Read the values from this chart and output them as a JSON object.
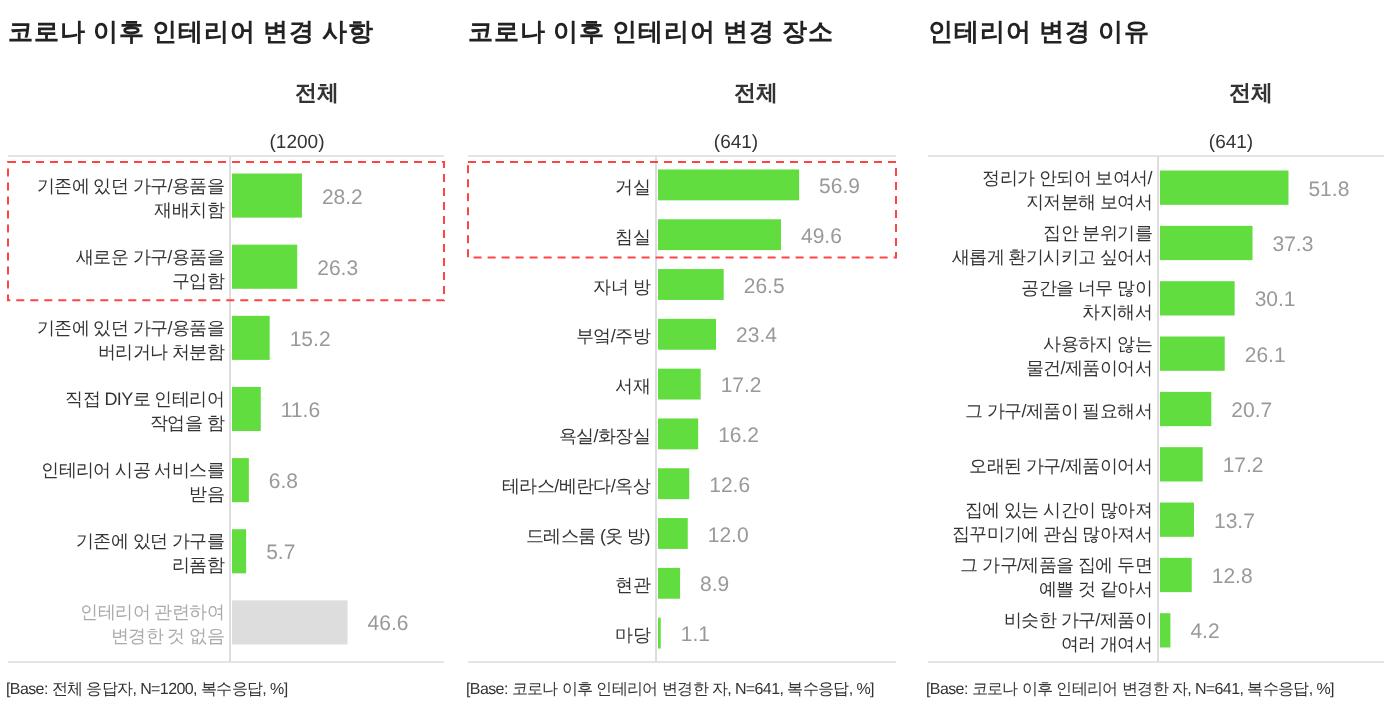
{
  "chart_data": [
    {
      "type": "bar",
      "orientation": "horizontal",
      "title": "코로나 이후 인테리어 변경 사항",
      "subtitle": "전체",
      "annotations": [
        "(1200)",
        "[Base: 전체 응답자, N=1200, 복수응답, %]"
      ],
      "categories": [
        "기존에 있던 가구/용품을\n재배치함",
        "새로운 가구/용품을\n구입함",
        "기존에 있던 가구/용품을\n버리거나 처분함",
        "직접 DIY로 인테리어\n작업을 함",
        "인테리어 시공 서비스를\n받음",
        "기존에 있던 가구를\n리폼함",
        "인테리어 관련하여\n변경한 것 없음"
      ],
      "values": [
        28.2,
        26.3,
        15.2,
        11.6,
        6.8,
        5.7,
        46.6
      ],
      "colors": [
        "#62dd40",
        "#62dd40",
        "#62dd40",
        "#62dd40",
        "#62dd40",
        "#62dd40",
        "#dddddd"
      ],
      "data_labels": true
    },
    {
      "type": "bar",
      "orientation": "horizontal",
      "title": "코로나 이후 인테리어 변경 장소",
      "subtitle": "전체",
      "annotations": [
        "(641)",
        "[Base: 코로나 이후 인테리어 변경한 자, N=641, 복수응답, %]"
      ],
      "categories": [
        "거실",
        "침실",
        "자녀 방",
        "부엌/주방",
        "서재",
        "욕실/화장실",
        "테라스/베란다/옥상",
        "드레스룸 (옷 방)",
        "현관",
        "마당"
      ],
      "values": [
        56.9,
        49.6,
        26.5,
        23.4,
        17.2,
        16.2,
        12.6,
        12.0,
        8.9,
        1.1
      ],
      "value_labels": [
        "56.9",
        "49.6",
        "26.5",
        "23.4",
        "17.2",
        "16.2",
        "12.6",
        "12.0",
        "8.9",
        "1.1"
      ],
      "colors": [
        "#62dd40",
        "#62dd40",
        "#62dd40",
        "#62dd40",
        "#62dd40",
        "#62dd40",
        "#62dd40",
        "#62dd40",
        "#62dd40",
        "#62dd40"
      ]
    },
    {
      "type": "bar",
      "orientation": "horizontal",
      "title": "인테리어 변경 이유",
      "subtitle": "전체",
      "annotations": [
        "(641)",
        "[Base: 코로나 이후 인테리어 변경한 자, N=641, 복수응답, %]"
      ],
      "categories": [
        "정리가 안되어 보여서/\n지저분해 보여서",
        "집안 분위기를\n새롭게 환기시키고 싶어서",
        "공간을 너무 많이\n차지해서",
        "사용하지 않는\n물건/제품이어서",
        "그 가구/제품이 필요해서",
        "오래된 가구/제품이어서",
        "집에 있는 시간이 많아져\n집꾸미기에 관심 많아져서",
        "그 가구/제품을 집에 두면\n예쁠 것 같아서",
        "비슷한 가구/제품이\n여러 개여서"
      ],
      "values": [
        51.8,
        37.3,
        30.1,
        26.1,
        20.7,
        17.2,
        13.7,
        12.8,
        4.2
      ],
      "colors": [
        "#62dd40",
        "#62dd40",
        "#62dd40",
        "#62dd40",
        "#62dd40",
        "#62dd40",
        "#62dd40",
        "#62dd40",
        "#62dd40"
      ],
      "data_labels": true
    }
  ]
}
